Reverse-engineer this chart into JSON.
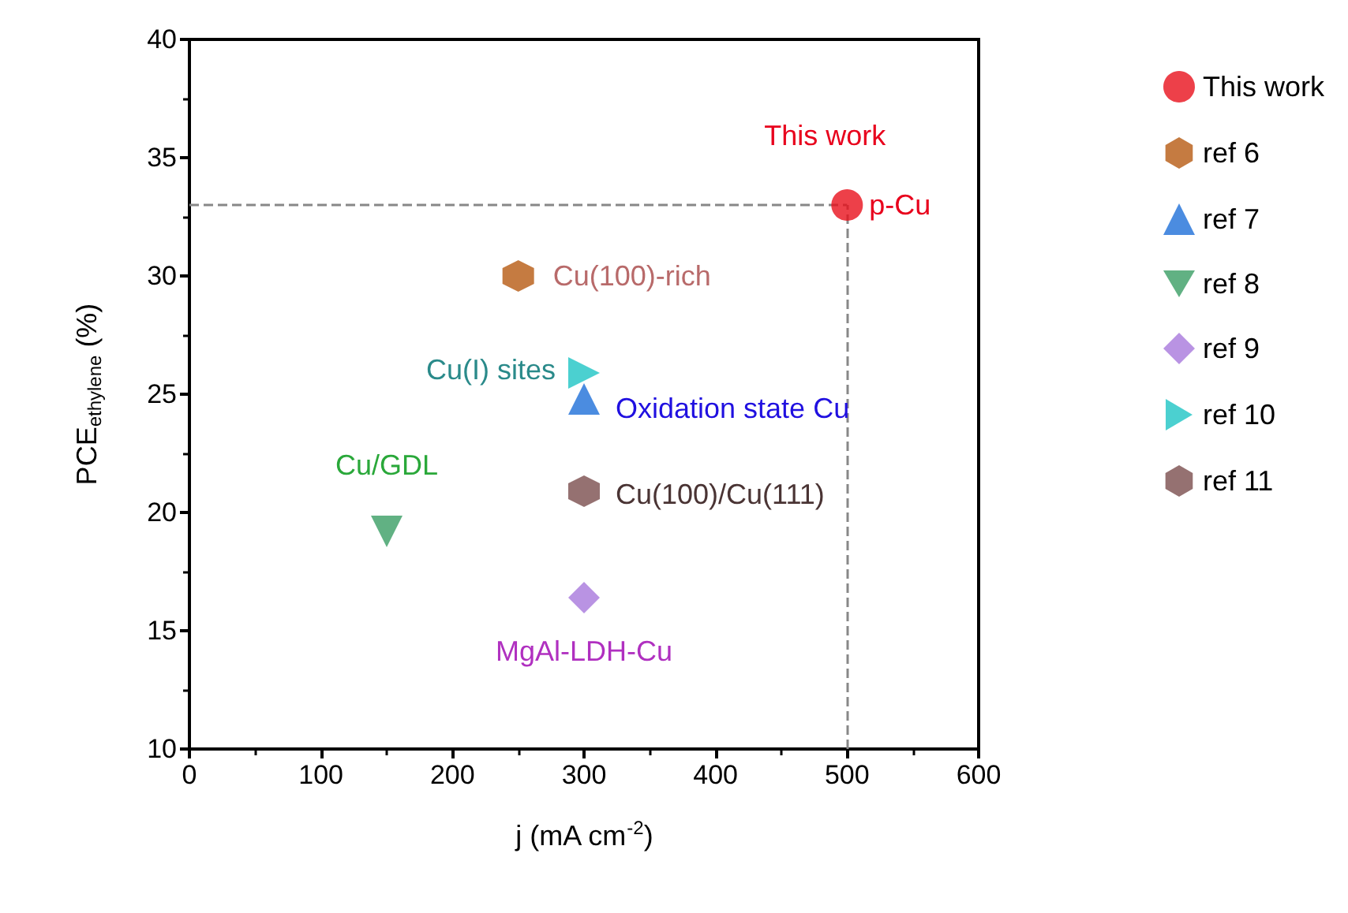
{
  "chart_data": {
    "type": "scatter",
    "xlabel": "j (mA cm$^{-2}$)",
    "ylabel": "PCE$_{ethylene}$ (%)",
    "xlim": [
      0,
      600
    ],
    "xticks": [
      0,
      100,
      200,
      300,
      400,
      500,
      600
    ],
    "ylim": [
      10,
      40
    ],
    "yticks": [
      10,
      15,
      20,
      25,
      30,
      35,
      40
    ],
    "grid": false,
    "legend": "right",
    "series": [
      {
        "name": "This work",
        "color": "#e8101c",
        "marker": "circle",
        "x": [
          500
        ],
        "values": [
          33
        ]
      },
      {
        "name": "ref 6",
        "color": "#b65a12",
        "x": [
          250
        ],
        "values": [
          30
        ]
      },
      {
        "name": "ref 7",
        "color": "#1e6fd8",
        "marker": "triangle",
        "x": [
          300
        ],
        "values": [
          24.8
        ]
      },
      {
        "name": "ref 8",
        "color": "#3a9e64",
        "marker": "triangle-down",
        "x": [
          150
        ],
        "values": [
          19.2
        ]
      },
      {
        "name": "ref 9",
        "color": "#a878dc",
        "marker": "diamond",
        "x": [
          300
        ],
        "values": [
          16.4
        ]
      },
      {
        "name": "ref 10",
        "color": "#1ec4c4",
        "marker": "triangle-right",
        "x": [
          300
        ],
        "values": [
          25.9
        ]
      },
      {
        "name": "ref 11",
        "color": "#7a4e4e",
        "x": [
          300
        ],
        "values": [
          20.9
        ]
      }
    ],
    "ref_lines": [
      {
        "axis": "x",
        "value": 500,
        "color": "#888888",
        "line_style": "dashed"
      },
      {
        "axis": "y",
        "value": 33,
        "color": "#888888",
        "line_style": "dashed"
      }
    ],
    "annotations": [
      {
        "text": "This work",
        "x": 500,
        "y": 33
      },
      {
        "text": "p-Cu",
        "x": 500,
        "y": 33
      },
      {
        "text": "Cu(100)-rich",
        "x": 250,
        "y": 30
      },
      {
        "text": "Cu(I) sites",
        "x": 300,
        "y": 25.9
      },
      {
        "text": "Oxidation state Cu",
        "x": 300,
        "y": 24.8
      },
      {
        "text": "Cu/GDL",
        "x": 150,
        "y": 19.2
      },
      {
        "text": "Cu(100)/Cu(111)",
        "x": 300,
        "y": 20.9
      },
      {
        "text": "MgAl-LDH-Cu",
        "x": 300,
        "y": 16.4
      }
    ]
  }
}
